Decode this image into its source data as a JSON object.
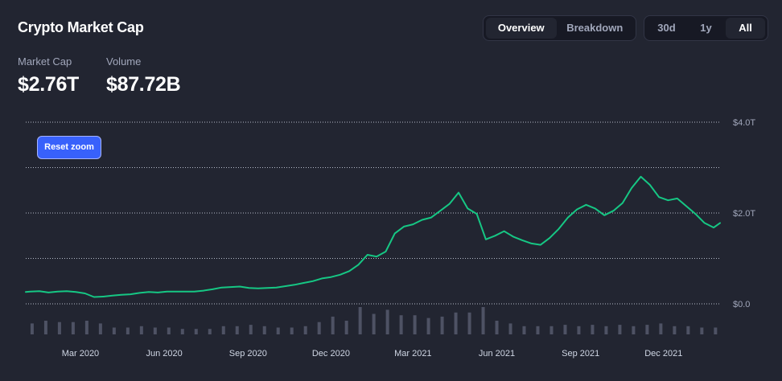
{
  "title": "Crypto Market Cap",
  "view_tabs": [
    {
      "label": "Overview",
      "active": true
    },
    {
      "label": "Breakdown",
      "active": false
    }
  ],
  "range_tabs": [
    {
      "label": "30d",
      "active": false
    },
    {
      "label": "1y",
      "active": false
    },
    {
      "label": "All",
      "active": true
    }
  ],
  "stats": {
    "market_cap_label": "Market Cap",
    "market_cap_value": "$2.76T",
    "volume_label": "Volume",
    "volume_value": "$87.72B"
  },
  "reset_zoom_label": "Reset zoom",
  "colors": {
    "background": "#222531",
    "line": "#16c784",
    "volume_bars": "#4e5264",
    "grid": "#cfd6e4",
    "axis_text": "#a1a7bb",
    "accent_button": "#3861fb"
  },
  "chart_data": {
    "type": "line",
    "title": "",
    "xlabel": "",
    "ylabel": "",
    "ylim": [
      0,
      4
    ],
    "y_ticks": [
      0,
      2,
      4
    ],
    "y_tick_labels": [
      "$0.0",
      "$2.0T",
      "$4.0T"
    ],
    "grid": true,
    "x_tick_labels": [
      "Mar 2020",
      "Jun 2020",
      "Sep 2020",
      "Dec 2020",
      "Mar 2021",
      "Jun 2021",
      "Sep 2021",
      "Dec 2021"
    ],
    "x_tick_positions": [
      "2020-03",
      "2020-06",
      "2020-09",
      "2020-12",
      "2021-03",
      "2021-06",
      "2021-09",
      "2021-12"
    ],
    "x_range": [
      "2020-01",
      "2022-02"
    ],
    "series": [
      {
        "type": "line",
        "x": [
          "2020-01-01",
          "2020-01-06",
          "2020-01-16",
          "2020-01-26",
          "2020-02-05",
          "2020-02-15",
          "2020-02-25",
          "2020-03-06",
          "2020-03-16",
          "2020-03-26",
          "2020-04-05",
          "2020-04-15",
          "2020-04-25",
          "2020-05-05",
          "2020-05-15",
          "2020-05-25",
          "2020-06-04",
          "2020-06-14",
          "2020-06-24",
          "2020-07-04",
          "2020-07-14",
          "2020-07-24",
          "2020-08-03",
          "2020-08-13",
          "2020-08-23",
          "2020-09-02",
          "2020-09-12",
          "2020-09-22",
          "2020-10-02",
          "2020-10-12",
          "2020-10-22",
          "2020-11-01",
          "2020-11-11",
          "2020-11-21",
          "2020-12-01",
          "2020-12-11",
          "2020-12-21",
          "2020-12-31",
          "2021-01-10",
          "2021-01-20",
          "2021-01-30",
          "2021-02-09",
          "2021-02-19",
          "2021-03-01",
          "2021-03-11",
          "2021-03-21",
          "2021-03-31",
          "2021-04-10",
          "2021-04-20",
          "2021-04-30",
          "2021-05-10",
          "2021-05-20",
          "2021-05-30",
          "2021-06-09",
          "2021-06-19",
          "2021-06-29",
          "2021-07-09",
          "2021-07-19",
          "2021-07-29",
          "2021-08-08",
          "2021-08-18",
          "2021-08-28",
          "2021-09-07",
          "2021-09-17",
          "2021-09-27",
          "2021-10-07",
          "2021-10-17",
          "2021-10-27",
          "2021-11-06",
          "2021-11-16",
          "2021-11-26",
          "2021-12-06",
          "2021-12-16",
          "2021-12-26",
          "2022-01-05",
          "2022-01-15",
          "2022-01-25",
          "2022-02-01"
        ],
        "values": [
          0.26,
          0.27,
          0.28,
          0.25,
          0.27,
          0.28,
          0.26,
          0.23,
          0.15,
          0.16,
          0.18,
          0.2,
          0.21,
          0.24,
          0.26,
          0.25,
          0.27,
          0.27,
          0.27,
          0.27,
          0.29,
          0.32,
          0.36,
          0.37,
          0.38,
          0.35,
          0.34,
          0.35,
          0.36,
          0.39,
          0.42,
          0.46,
          0.5,
          0.56,
          0.59,
          0.64,
          0.72,
          0.86,
          1.08,
          1.04,
          1.15,
          1.55,
          1.7,
          1.75,
          1.85,
          1.9,
          2.05,
          2.2,
          2.45,
          2.1,
          1.98,
          1.42,
          1.5,
          1.6,
          1.48,
          1.4,
          1.33,
          1.3,
          1.45,
          1.65,
          1.9,
          2.08,
          2.18,
          2.1,
          1.95,
          2.05,
          2.22,
          2.55,
          2.8,
          2.62,
          2.35,
          2.28,
          2.32,
          2.15,
          1.98,
          1.78,
          1.68,
          1.78
        ]
      },
      {
        "type": "bar",
        "name": "",
        "x": [
          "2020-01-08",
          "2020-01-23",
          "2020-02-07",
          "2020-02-22",
          "2020-03-08",
          "2020-03-23",
          "2020-04-07",
          "2020-04-22",
          "2020-05-07",
          "2020-05-22",
          "2020-06-06",
          "2020-06-21",
          "2020-07-06",
          "2020-07-21",
          "2020-08-05",
          "2020-08-20",
          "2020-09-04",
          "2020-09-19",
          "2020-10-04",
          "2020-10-19",
          "2020-11-03",
          "2020-11-18",
          "2020-12-03",
          "2020-12-18",
          "2021-01-02",
          "2021-01-17",
          "2021-02-01",
          "2021-02-16",
          "2021-03-03",
          "2021-03-18",
          "2021-04-02",
          "2021-04-17",
          "2021-05-02",
          "2021-05-17",
          "2021-06-01",
          "2021-06-16",
          "2021-07-01",
          "2021-07-16",
          "2021-07-31",
          "2021-08-15",
          "2021-08-30",
          "2021-09-14",
          "2021-09-29",
          "2021-10-14",
          "2021-10-29",
          "2021-11-13",
          "2021-11-28",
          "2021-12-13",
          "2021-12-28",
          "2022-01-12",
          "2022-01-27"
        ],
        "values": [
          0.08,
          0.1,
          0.09,
          0.09,
          0.1,
          0.08,
          0.05,
          0.05,
          0.06,
          0.05,
          0.05,
          0.04,
          0.04,
          0.04,
          0.06,
          0.06,
          0.07,
          0.06,
          0.05,
          0.05,
          0.06,
          0.09,
          0.13,
          0.1,
          0.2,
          0.15,
          0.18,
          0.14,
          0.14,
          0.12,
          0.13,
          0.16,
          0.16,
          0.2,
          0.1,
          0.08,
          0.06,
          0.06,
          0.06,
          0.07,
          0.06,
          0.07,
          0.06,
          0.07,
          0.06,
          0.07,
          0.08,
          0.06,
          0.06,
          0.05,
          0.05
        ]
      }
    ],
    "volume_note": "Volume shown as relative bars; no axis printed"
  }
}
